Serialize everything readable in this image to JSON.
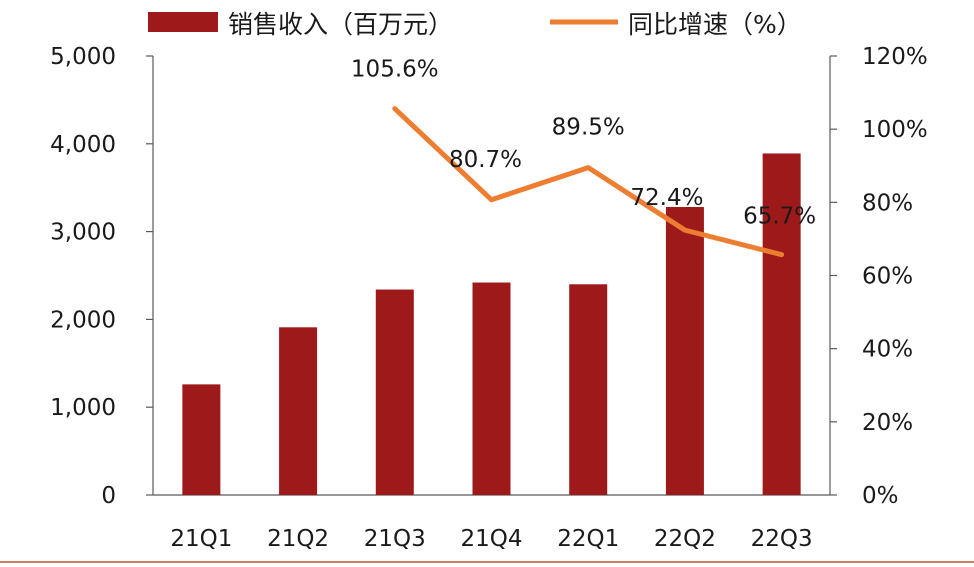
{
  "chart_data": {
    "type": "bar+line",
    "categories": [
      "21Q1",
      "21Q2",
      "21Q3",
      "21Q4",
      "22Q1",
      "22Q2",
      "22Q3"
    ],
    "series": [
      {
        "name": "销售收入（百万元）",
        "type": "bar",
        "axis": "left",
        "color": "#9e1a1a",
        "values": [
          1260,
          1910,
          2340,
          2420,
          2400,
          3280,
          3890
        ]
      },
      {
        "name": "同比增速（%）",
        "type": "line",
        "axis": "right",
        "color": "#ed7d31",
        "values": [
          null,
          null,
          105.6,
          80.7,
          89.5,
          72.4,
          65.7
        ],
        "labels": [
          "",
          "",
          "105.6%",
          "80.7%",
          "89.5%",
          "72.4%",
          "65.7%"
        ]
      }
    ],
    "y_left": {
      "ylim": [
        0,
        5000
      ],
      "ticks": [
        "0",
        "1,000",
        "2,000",
        "3,000",
        "4,000",
        "5,000"
      ]
    },
    "y_right": {
      "ylim": [
        0,
        120
      ],
      "ticks": [
        "0%",
        "20%",
        "40%",
        "60%",
        "80%",
        "100%",
        "120%"
      ]
    },
    "legend_position": "top",
    "grid": false,
    "footer_rule_color": "#c8805a"
  }
}
